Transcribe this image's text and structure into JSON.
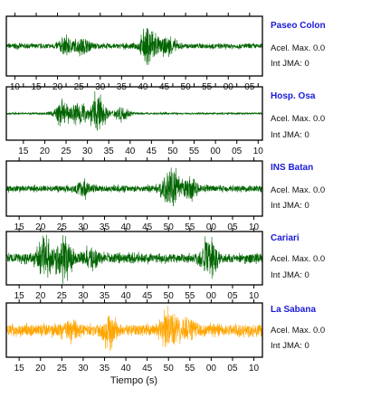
{
  "chart_data": {
    "type": "line",
    "xlabel": "Tiempo (s)",
    "panels": [
      {
        "station": "Paseo Colon",
        "accel_label": "Acel. Max. 0.0",
        "jma_label": "Int JMA: 0",
        "color": "#006400",
        "tick_labels": [
          "10",
          "15",
          "20",
          "25",
          "30",
          "35",
          "40",
          "45",
          "50",
          "55",
          "00",
          "05"
        ],
        "tick_seconds": [
          10,
          15,
          20,
          25,
          30,
          35,
          40,
          45,
          50,
          55,
          60,
          65
        ],
        "xlim": [
          8,
          68
        ],
        "bursts": [
          {
            "t": 41.5,
            "amp": 1.0
          },
          {
            "t": 22,
            "amp": 0.35
          },
          {
            "t": 26,
            "amp": 0.3
          },
          {
            "t": 46,
            "amp": 0.35
          }
        ],
        "noise": 0.12
      },
      {
        "station": "Hosp. Osa",
        "accel_label": "Acel. Max. 0.0",
        "jma_label": "Int JMA: 0",
        "color": "#006400",
        "tick_labels": [
          "15",
          "20",
          "25",
          "30",
          "35",
          "40",
          "45",
          "50",
          "55",
          "00",
          "05",
          "10"
        ],
        "tick_seconds": [
          15,
          20,
          25,
          30,
          35,
          40,
          45,
          50,
          55,
          60,
          65,
          70
        ],
        "xlim": [
          11,
          71
        ],
        "bursts": [
          {
            "t": 32.5,
            "amp": 1.0
          },
          {
            "t": 24,
            "amp": 0.55
          },
          {
            "t": 28,
            "amp": 0.6
          },
          {
            "t": 38,
            "amp": 0.35
          }
        ],
        "noise": 0.05
      },
      {
        "station": "INS Batan",
        "accel_label": "Acel. Max. 0.0",
        "jma_label": "Int JMA: 0",
        "color": "#006400",
        "tick_labels": [
          "15",
          "20",
          "25",
          "30",
          "35",
          "40",
          "45",
          "50",
          "55",
          "00",
          "05",
          "10"
        ],
        "tick_seconds": [
          15,
          20,
          25,
          30,
          35,
          40,
          45,
          50,
          55,
          60,
          65,
          70
        ],
        "xlim": [
          12,
          72
        ],
        "bursts": [
          {
            "t": 50.5,
            "amp": 1.0
          },
          {
            "t": 55,
            "amp": 0.4
          },
          {
            "t": 30,
            "amp": 0.3
          }
        ],
        "noise": 0.16
      },
      {
        "station": "Cariari",
        "accel_label": "Acel. Max. 0.0",
        "jma_label": "Int JMA: 0",
        "color": "#006400",
        "tick_labels": [
          "15",
          "20",
          "25",
          "30",
          "35",
          "40",
          "45",
          "50",
          "55",
          "00",
          "05",
          "10"
        ],
        "tick_seconds": [
          15,
          20,
          25,
          30,
          35,
          40,
          45,
          50,
          55,
          60,
          65,
          70
        ],
        "xlim": [
          12,
          72
        ],
        "bursts": [
          {
            "t": 25.5,
            "amp": 1.0
          },
          {
            "t": 21,
            "amp": 0.7
          },
          {
            "t": 59.5,
            "amp": 0.85
          },
          {
            "t": 32,
            "amp": 0.4
          }
        ],
        "noise": 0.25
      },
      {
        "station": "La Sabana",
        "accel_label": "Acel. Max. 0.0",
        "jma_label": "Int JMA: 0",
        "color": "#FFA500",
        "tick_labels": [
          "15",
          "20",
          "25",
          "30",
          "35",
          "40",
          "45",
          "50",
          "55",
          "00",
          "05",
          "10"
        ],
        "tick_seconds": [
          15,
          20,
          25,
          30,
          35,
          40,
          45,
          50,
          55,
          60,
          65,
          70
        ],
        "xlim": [
          12,
          72
        ],
        "bursts": [
          {
            "t": 50.5,
            "amp": 1.0
          },
          {
            "t": 36,
            "amp": 0.55
          },
          {
            "t": 55,
            "amp": 0.35
          },
          {
            "t": 27,
            "amp": 0.3
          }
        ],
        "noise": 0.3
      }
    ]
  }
}
